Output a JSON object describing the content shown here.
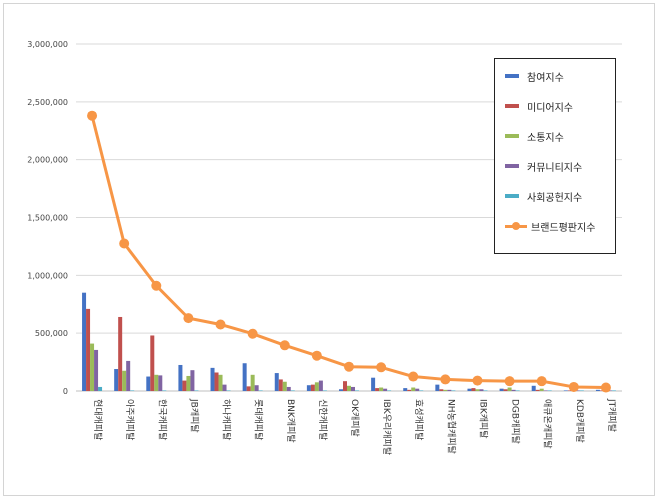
{
  "chart_data": {
    "type": "bar",
    "categories": [
      "현대캐피탈",
      "아주캐피탈",
      "한국캐피탈",
      "JB캐피탈",
      "하나캐피탈",
      "롯데캐피탈",
      "BNK캐피탈",
      "신한캐피탈",
      "OK캐피탈",
      "IBK우리캐피탈",
      "효성캐피탈",
      "NH농협캐피탈",
      "IBK캐피탈",
      "DGB캐피탈",
      "애큐온캐피탈",
      "KDB캐피탈",
      "JT캐피탈"
    ],
    "series": [
      {
        "name": "참여지수",
        "color": "#4472c4",
        "kind": "bar",
        "values": [
          850000,
          190000,
          125000,
          225000,
          200000,
          240000,
          155000,
          50000,
          15000,
          115000,
          25000,
          55000,
          20000,
          20000,
          45000,
          5000,
          10000
        ]
      },
      {
        "name": "미디어지수",
        "color": "#c0504d",
        "kind": "bar",
        "values": [
          710000,
          640000,
          480000,
          90000,
          160000,
          40000,
          100000,
          55000,
          85000,
          25000,
          10000,
          15000,
          25000,
          15000,
          10000,
          5000,
          5000
        ]
      },
      {
        "name": "소통지수",
        "color": "#9bbb59",
        "kind": "bar",
        "values": [
          410000,
          175000,
          140000,
          130000,
          140000,
          140000,
          80000,
          75000,
          45000,
          30000,
          30000,
          10000,
          15000,
          30000,
          20000,
          5000,
          10000
        ]
      },
      {
        "name": "커뮤니티지수",
        "color": "#8064a2",
        "kind": "bar",
        "values": [
          355000,
          260000,
          135000,
          180000,
          55000,
          50000,
          35000,
          90000,
          35000,
          20000,
          20000,
          10000,
          15000,
          10000,
          5000,
          5000,
          5000
        ]
      },
      {
        "name": "사회공헌지수",
        "color": "#4bacc6",
        "kind": "bar",
        "values": [
          35000,
          5000,
          5000,
          5000,
          5000,
          5000,
          5000,
          5000,
          5000,
          5000,
          5000,
          5000,
          5000,
          5000,
          5000,
          5000,
          5000
        ]
      },
      {
        "name": "브랜드평판지수",
        "color": "#f79646",
        "kind": "line",
        "values": [
          2380000,
          1275000,
          910000,
          630000,
          575000,
          495000,
          395000,
          305000,
          210000,
          205000,
          125000,
          100000,
          90000,
          85000,
          85000,
          35000,
          30000
        ]
      }
    ],
    "yticks": [
      "0",
      "500,000",
      "1,000,000",
      "1,500,000",
      "2,000,000",
      "2,500,000",
      "3,000,000"
    ],
    "ylim": [
      0,
      3000000
    ],
    "grid": true,
    "legend_position": "right"
  }
}
